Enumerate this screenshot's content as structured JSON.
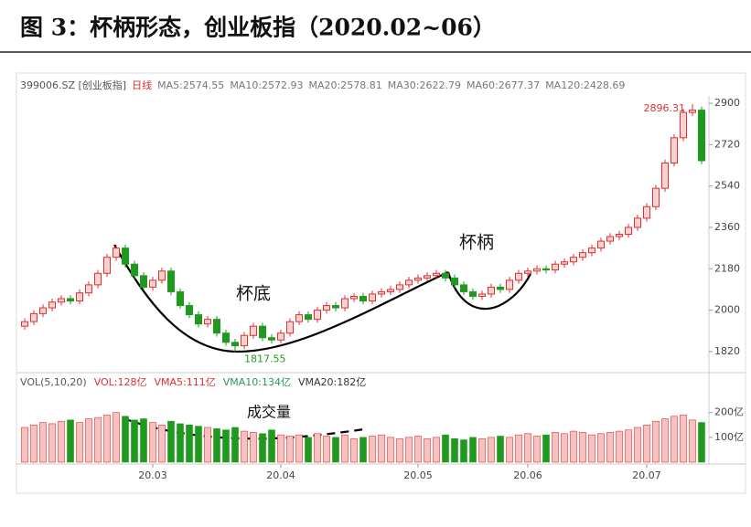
{
  "chart_data": {
    "type": "candlestick",
    "title": "图 3：杯柄形态，创业板指（2020.02~06）",
    "header": [
      "399006.SZ [创业板指]",
      "日线",
      "MA5:2574.55",
      "MA10:2572.93",
      "MA20:2578.81",
      "MA30:2622.79",
      "MA60:2677.37",
      "MA120:2428.69"
    ],
    "volume_header": [
      "VOL(5,10,20)",
      "VOL:128亿",
      "VMA5:111亿",
      "VMA10:134亿",
      "VMA20:182亿"
    ],
    "annotations": [
      "杯底",
      "杯柄",
      "成交量"
    ],
    "up_color": "#e03030",
    "down_color": "#1e9a1e",
    "categories": [
      null,
      null,
      null,
      null,
      null,
      null,
      null,
      null,
      null,
      null,
      null,
      null,
      null,
      null,
      "20.03",
      null,
      null,
      null,
      null,
      null,
      null,
      null,
      null,
      null,
      null,
      null,
      null,
      null,
      "20.04",
      null,
      null,
      null,
      null,
      null,
      null,
      null,
      null,
      null,
      null,
      null,
      null,
      null,
      null,
      "20.05",
      null,
      null,
      null,
      null,
      null,
      null,
      null,
      null,
      null,
      null,
      null,
      "20.06",
      null,
      null,
      null,
      null,
      null,
      null,
      null,
      null,
      null,
      null,
      null,
      null,
      "20.07",
      null,
      null,
      null,
      null,
      null,
      null
    ],
    "open": [
      1930,
      1950,
      1985,
      2010,
      2035,
      2050,
      2040,
      2075,
      2110,
      2160,
      2230,
      2270,
      2200,
      2150,
      2100,
      2130,
      2170,
      2080,
      2020,
      1980,
      1940,
      1960,
      1900,
      1860,
      1845,
      1890,
      1930,
      1880,
      1870,
      1900,
      1950,
      1980,
      1960,
      2000,
      2020,
      2010,
      2050,
      2060,
      2040,
      2070,
      2080,
      2090,
      2110,
      2130,
      2140,
      2150,
      2160,
      2140,
      2110,
      2080,
      2060,
      2070,
      2100,
      2090,
      2130,
      2160,
      2170,
      2180,
      2175,
      2200,
      2210,
      2230,
      2250,
      2270,
      2300,
      2320,
      2330,
      2360,
      2400,
      2450,
      2530,
      2640,
      2750,
      2860,
      2870
    ],
    "high": [
      1965,
      2000,
      2025,
      2050,
      2065,
      2065,
      2090,
      2125,
      2175,
      2245,
      2285,
      2285,
      2215,
      2165,
      2145,
      2185,
      2185,
      2095,
      2035,
      1995,
      1975,
      1975,
      1915,
      1875,
      1905,
      1945,
      1945,
      1895,
      1915,
      1965,
      1995,
      1995,
      2015,
      2035,
      2035,
      2065,
      2075,
      2075,
      2085,
      2095,
      2105,
      2125,
      2145,
      2155,
      2165,
      2175,
      2175,
      2155,
      2125,
      2095,
      2085,
      2115,
      2115,
      2145,
      2175,
      2185,
      2195,
      2195,
      2215,
      2225,
      2245,
      2265,
      2285,
      2315,
      2335,
      2345,
      2375,
      2415,
      2465,
      2545,
      2655,
      2765,
      2875,
      2896.31,
      2885
    ],
    "low": [
      1915,
      1935,
      1970,
      1995,
      2020,
      2025,
      2025,
      2060,
      2095,
      2145,
      2215,
      2185,
      2135,
      2085,
      2085,
      2115,
      2065,
      2005,
      1965,
      1925,
      1925,
      1885,
      1845,
      1817.55,
      1830,
      1875,
      1865,
      1855,
      1855,
      1885,
      1935,
      1945,
      1945,
      1985,
      1995,
      1995,
      2035,
      2025,
      2025,
      2055,
      2065,
      2075,
      2095,
      2115,
      2125,
      2135,
      2125,
      2095,
      2065,
      2045,
      2045,
      2055,
      2075,
      2075,
      2115,
      2145,
      2155,
      2160,
      2160,
      2185,
      2195,
      2215,
      2235,
      2255,
      2285,
      2305,
      2315,
      2345,
      2385,
      2435,
      2515,
      2625,
      2735,
      2845,
      2635
    ],
    "close": [
      1950,
      1985,
      2010,
      2035,
      2050,
      2040,
      2075,
      2110,
      2160,
      2230,
      2270,
      2200,
      2150,
      2100,
      2130,
      2170,
      2080,
      2020,
      1980,
      1940,
      1960,
      1900,
      1860,
      1845,
      1890,
      1930,
      1880,
      1870,
      1900,
      1950,
      1980,
      1960,
      2000,
      2020,
      2010,
      2050,
      2060,
      2040,
      2070,
      2080,
      2090,
      2110,
      2130,
      2140,
      2150,
      2160,
      2140,
      2110,
      2080,
      2060,
      2070,
      2100,
      2090,
      2130,
      2160,
      2170,
      2180,
      2175,
      2200,
      2210,
      2230,
      2250,
      2270,
      2300,
      2320,
      2330,
      2360,
      2400,
      2450,
      2530,
      2640,
      2750,
      2860,
      2870,
      2650
    ],
    "volume": [
      140,
      150,
      160,
      155,
      165,
      170,
      160,
      175,
      180,
      190,
      200,
      185,
      170,
      175,
      160,
      150,
      165,
      155,
      150,
      145,
      140,
      135,
      130,
      140,
      125,
      120,
      115,
      130,
      110,
      105,
      110,
      100,
      115,
      105,
      100,
      110,
      95,
      100,
      105,
      110,
      100,
      95,
      100,
      105,
      95,
      100,
      110,
      95,
      90,
      100,
      95,
      100,
      105,
      100,
      110,
      115,
      105,
      110,
      120,
      115,
      125,
      120,
      110,
      115,
      120,
      125,
      130,
      140,
      150,
      165,
      175,
      185,
      190,
      170,
      160
    ],
    "ylim": [
      1740,
      2932
    ],
    "yticks": [
      1820,
      2000,
      2180,
      2360,
      2540,
      2720,
      2900
    ],
    "vlim": [
      0,
      280
    ],
    "vticks": [
      {
        "value": 200,
        "label": "200亿"
      },
      {
        "value": 100,
        "label": "100亿"
      }
    ]
  }
}
